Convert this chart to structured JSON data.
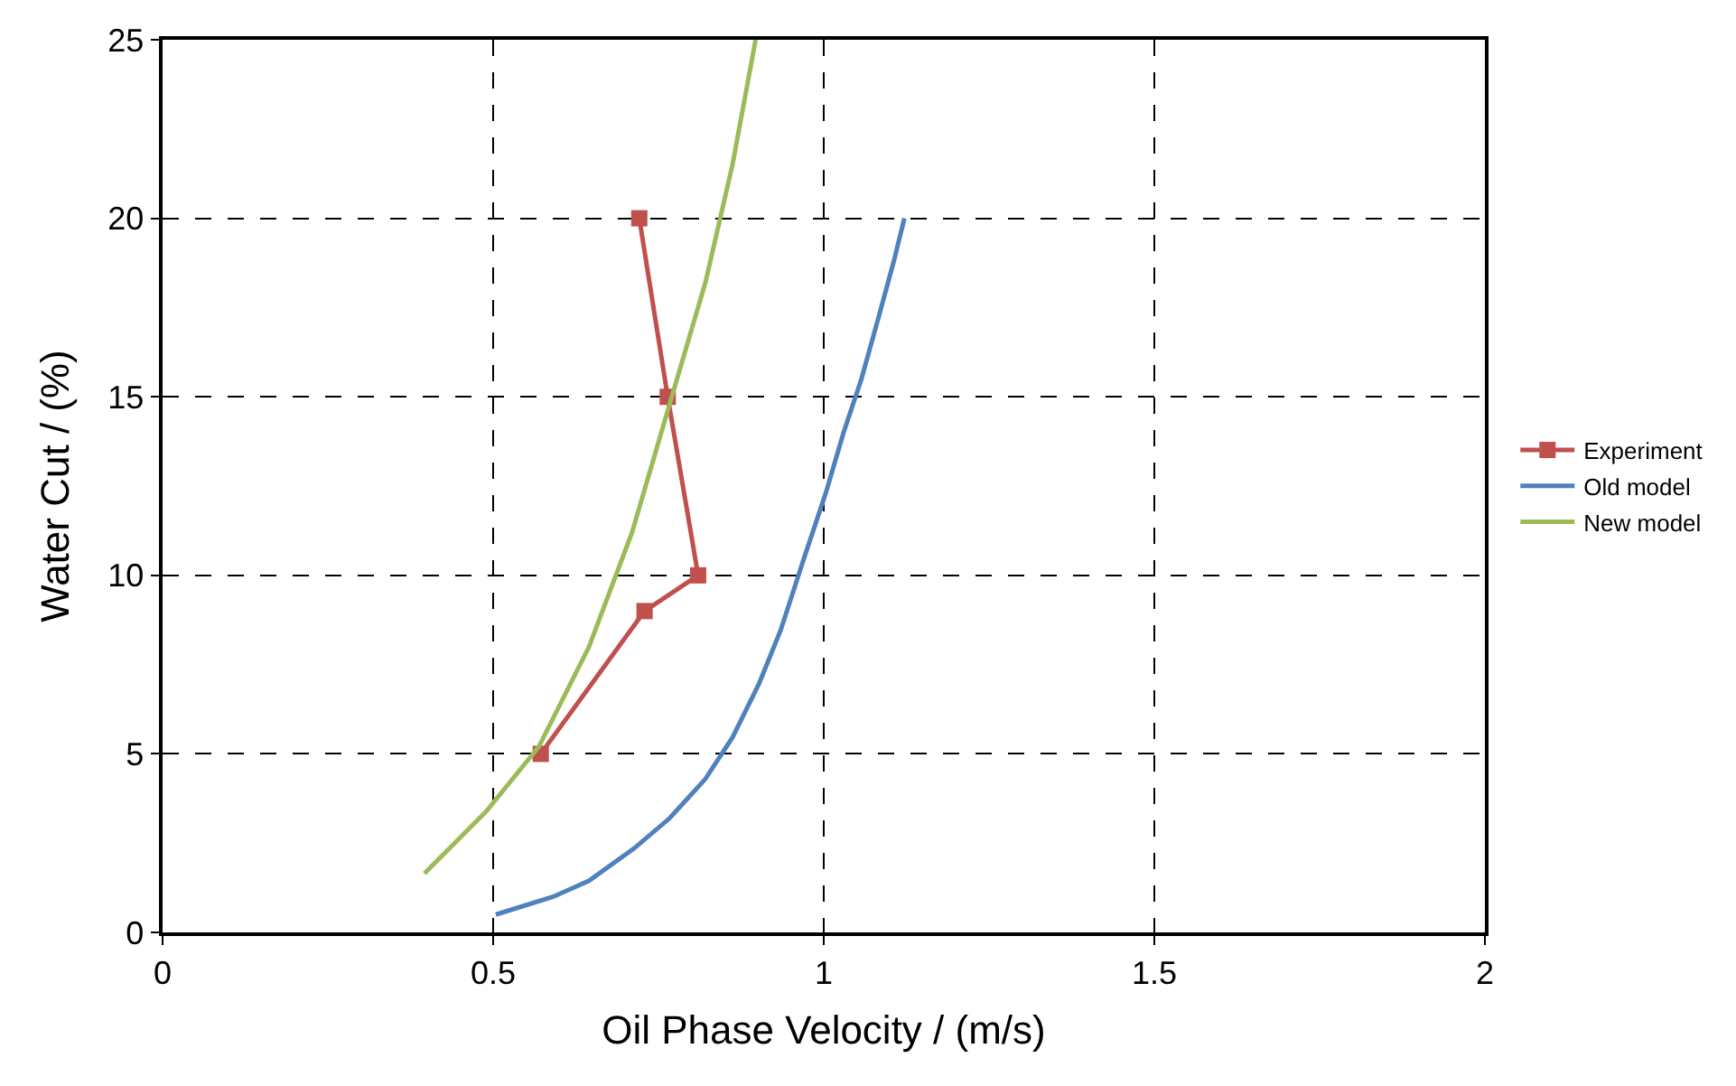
{
  "chart_data": {
    "type": "line",
    "xlabel": "Oil Phase Velocity / (m/s)",
    "ylabel": "Water Cut / (%)",
    "xlim": [
      0,
      2
    ],
    "xticks": [
      0,
      0.5,
      1,
      1.5,
      2
    ],
    "ylim": [
      0,
      25
    ],
    "yticks": [
      0,
      5,
      10,
      15,
      20,
      25
    ],
    "grid": true,
    "legend": "right",
    "series": [
      {
        "name": "Experiment",
        "color": "#c0504d",
        "marker": "square",
        "x": [
          0.572,
          0.729,
          0.81,
          0.764,
          0.721
        ],
        "values": [
          5,
          9,
          10,
          15,
          20
        ]
      },
      {
        "name": "Old model",
        "color": "#4f81bd",
        "marker": "none",
        "x": [
          0.504,
          0.591,
          0.645,
          0.713,
          0.767,
          0.821,
          0.862,
          0.902,
          0.935,
          0.97,
          1.003,
          1.03,
          1.057,
          1.084,
          1.106,
          1.122
        ],
        "values": [
          0.5,
          1.0,
          1.45,
          2.35,
          3.2,
          4.3,
          5.46,
          6.96,
          8.47,
          10.47,
          12.3,
          14,
          15.5,
          17.3,
          18.8,
          20
        ]
      },
      {
        "name": "New model",
        "color": "#9bbb59",
        "marker": "none",
        "x": [
          0.396,
          0.49,
          0.569,
          0.645,
          0.71,
          0.767,
          0.821,
          0.862,
          0.897
        ],
        "values": [
          1.65,
          3.4,
          5.2,
          8.0,
          11.2,
          14.8,
          18.2,
          21.5,
          25
        ]
      }
    ]
  }
}
